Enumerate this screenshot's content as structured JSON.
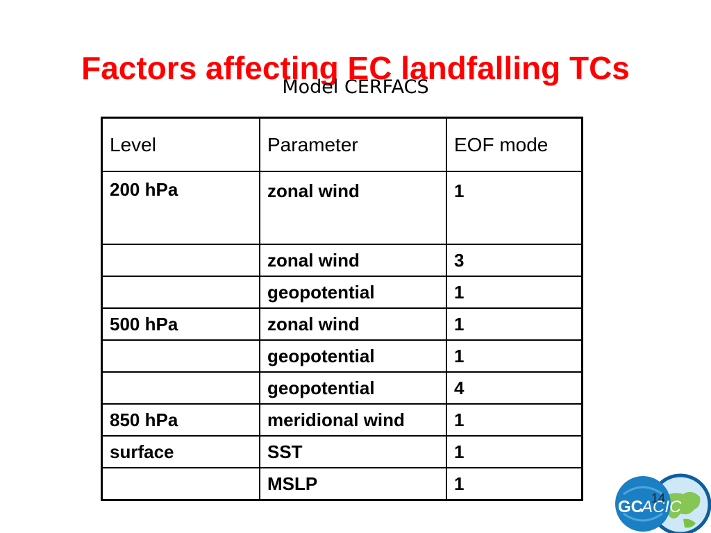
{
  "slide": {
    "title": "Factors affecting EC landfalling TCs",
    "subtitle": "Model CERFACS",
    "page_number": "14"
  },
  "table": {
    "headers": [
      "Level",
      "Parameter",
      "EOF mode"
    ],
    "rows": [
      [
        "200 hPa",
        "zonal wind",
        "1"
      ],
      [
        "",
        "zonal wind",
        "3"
      ],
      [
        "",
        "geopotential",
        "1"
      ],
      [
        "500 hPa",
        "zonal wind",
        "1"
      ],
      [
        "",
        "geopotential",
        "1"
      ],
      [
        "",
        "geopotential",
        "4"
      ],
      [
        "850 hPa",
        "meridional wind",
        "1"
      ],
      [
        "surface",
        "SST",
        "1"
      ],
      [
        "",
        "MSLP",
        "1"
      ]
    ]
  },
  "logo": {
    "text_gc": "GC",
    "text_acic": "ACIC",
    "colors": {
      "blue": "#1b7fc4",
      "dark_blue": "#0d5f9c",
      "green": "#7cc242",
      "light_blue": "#cfe8f7"
    }
  },
  "colors": {
    "title": "#ff0000",
    "text": "#000000",
    "background": "#ffffff"
  }
}
